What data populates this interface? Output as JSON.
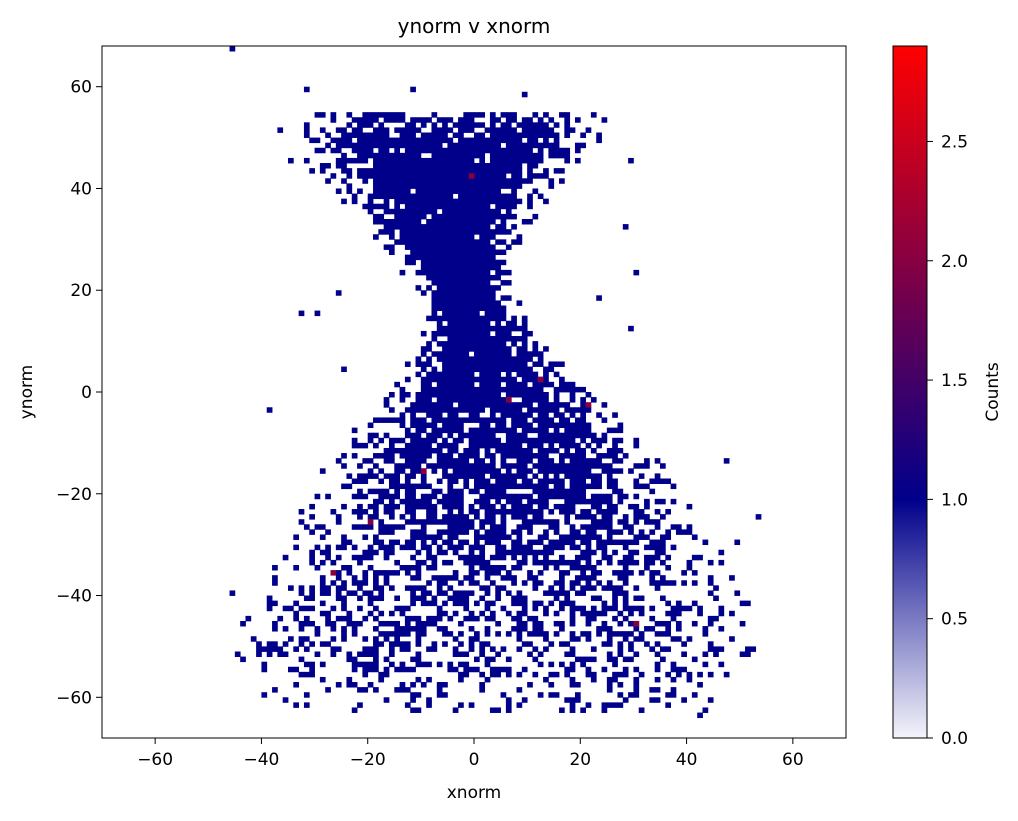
{
  "chart_data": {
    "type": "heatmap",
    "title": "ynorm v xnorm",
    "xlabel": "xnorm",
    "ylabel": "ynorm",
    "xlim": [
      -70,
      70
    ],
    "ylim": [
      -68,
      68
    ],
    "xticks": [
      -60,
      -40,
      -20,
      0,
      20,
      40,
      60
    ],
    "xtick_labels": [
      "−60",
      "−40",
      "−20",
      "0",
      "20",
      "40",
      "60"
    ],
    "yticks": [
      -60,
      -40,
      -20,
      0,
      20,
      40,
      60
    ],
    "ytick_labels": [
      "−60",
      "−40",
      "−20",
      "0",
      "20",
      "40",
      "60"
    ],
    "bins": {
      "x_width": 1.0,
      "y_width": 1.0
    },
    "colorbar": {
      "label": "Counts",
      "min": 0.0,
      "max": 2.9,
      "ticks": [
        0.0,
        0.5,
        1.0,
        1.5,
        2.0,
        2.5
      ],
      "tick_labels": [
        "0.0",
        "0.5",
        "1.0",
        "1.5",
        "2.0",
        "2.5"
      ],
      "colors": [
        "#f4f4fb",
        "#00008b",
        "#ff0000"
      ],
      "color_stops": [
        0.0,
        1.0,
        2.9
      ]
    },
    "distribution_profile": {
      "description_values": {
        "y": [
          55,
          50,
          40,
          30,
          20,
          10,
          0,
          -10,
          -20,
          -30,
          -40,
          -50,
          -60
        ],
        "x_left": [
          -32,
          -32,
          -26,
          -18,
          -10,
          -9,
          -14,
          -22,
          -28,
          -32,
          -40,
          -42,
          -40
        ],
        "x_right": [
          22,
          22,
          14,
          8,
          6,
          12,
          20,
          30,
          38,
          42,
          48,
          50,
          46
        ],
        "fill_density": [
          0.45,
          0.85,
          0.95,
          0.97,
          0.97,
          0.95,
          0.9,
          0.8,
          0.7,
          0.6,
          0.5,
          0.42,
          0.25
        ]
      }
    },
    "high_count_bins": [
      {
        "x": -1,
        "y": 42,
        "count": 2
      },
      {
        "x": 21,
        "y": -3,
        "count": 2
      },
      {
        "x": 30,
        "y": -46,
        "count": 2
      },
      {
        "x": -10,
        "y": -16,
        "count": 2
      },
      {
        "x": 6,
        "y": -2,
        "count": 2
      },
      {
        "x": -20,
        "y": -26,
        "count": 2
      },
      {
        "x": 12,
        "y": 2,
        "count": 2
      },
      {
        "x": -27,
        "y": -36,
        "count": 2
      }
    ],
    "outlier_bins": [
      {
        "x": -46,
        "y": 67
      },
      {
        "x": -32,
        "y": 59
      },
      {
        "x": -12,
        "y": 59
      },
      {
        "x": -37,
        "y": 51
      },
      {
        "x": 9,
        "y": 58
      },
      {
        "x": 24,
        "y": 53
      },
      {
        "x": 29,
        "y": 45
      },
      {
        "x": -35,
        "y": 45
      },
      {
        "x": 28,
        "y": 32
      },
      {
        "x": 30,
        "y": 23
      },
      {
        "x": -33,
        "y": 15
      },
      {
        "x": -26,
        "y": 19
      },
      {
        "x": 23,
        "y": 18
      },
      {
        "x": -39,
        "y": -4
      },
      {
        "x": 29,
        "y": 12
      },
      {
        "x": 47,
        "y": -14
      },
      {
        "x": 53,
        "y": -25
      },
      {
        "x": -46,
        "y": -40
      },
      {
        "x": -43,
        "y": -45
      },
      {
        "x": 50,
        "y": -52
      },
      {
        "x": 42,
        "y": -64
      },
      {
        "x": 3,
        "y": -63
      },
      {
        "x": -9,
        "y": -62
      },
      {
        "x": -40,
        "y": -60
      },
      {
        "x": 49,
        "y": -30
      },
      {
        "x": -30,
        "y": 15
      },
      {
        "x": -25,
        "y": 4
      }
    ]
  }
}
